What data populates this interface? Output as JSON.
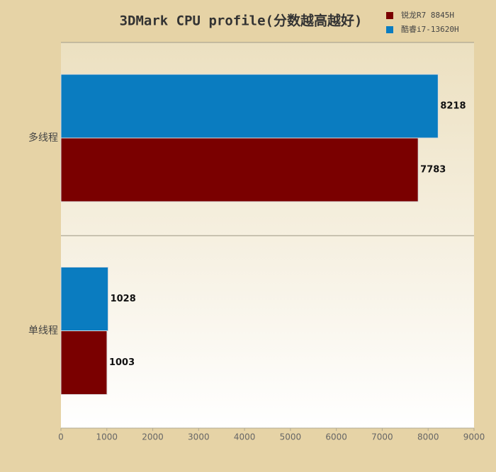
{
  "chart_data": {
    "type": "bar",
    "orientation": "horizontal",
    "title": "3DMark CPU profile(分数越高越好)",
    "categories": [
      "多线程",
      "单线程"
    ],
    "series": [
      {
        "name": "锐龙R7 8845H",
        "color": "#7a0000",
        "values": [
          7783,
          1003
        ]
      },
      {
        "name": "酷睿i7-13620H",
        "color": "#0a7cc0",
        "values": [
          8218,
          1028
        ]
      }
    ],
    "xlim": [
      0,
      9000
    ],
    "xticks": [
      0,
      1000,
      2000,
      3000,
      4000,
      5000,
      6000,
      7000,
      8000,
      9000
    ]
  }
}
